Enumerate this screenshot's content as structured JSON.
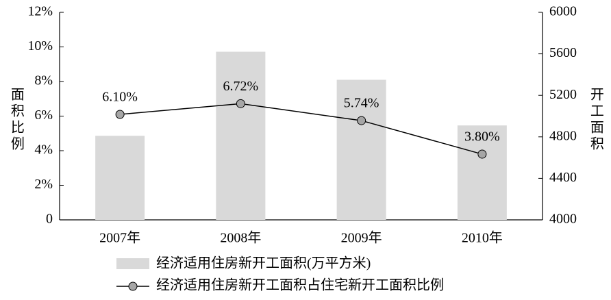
{
  "chart_data": {
    "type": "bar",
    "categories": [
      "2007年",
      "2008年",
      "2009年",
      "2010年"
    ],
    "y_label": "面积比例",
    "y2_label": "开工面积",
    "ylim": [
      0,
      12
    ],
    "yticks": [
      0,
      {
        "value": 2,
        "label": "2%"
      },
      {
        "value": 4,
        "label": "4%"
      },
      {
        "value": 6,
        "label": "6%"
      },
      {
        "value": 8,
        "label": "8%"
      },
      {
        "value": 10,
        "label": "10%"
      },
      {
        "value": 12,
        "label": "12%"
      }
    ],
    "y2lim": [
      4000,
      6000
    ],
    "y2ticks": [
      4000,
      4400,
      4800,
      5200,
      5600,
      6000
    ],
    "legend": "bottom",
    "series": [
      {
        "name": "经济适用住房新开工面积(万平方米)",
        "type": "bar",
        "axis": "y2",
        "color": "#d9d9d9",
        "values": [
          4810,
          5620,
          5350,
          4910
        ]
      },
      {
        "name": "经济适用住房新开工面积占住宅新开工面积比例",
        "type": "line",
        "color": "#000000",
        "marker_color": "#a6a6a6",
        "values": [
          6.1,
          6.72,
          5.74,
          3.8
        ],
        "value_labels": [
          "6.10%",
          "6.72%",
          "5.74%",
          "3.80%"
        ]
      }
    ]
  }
}
